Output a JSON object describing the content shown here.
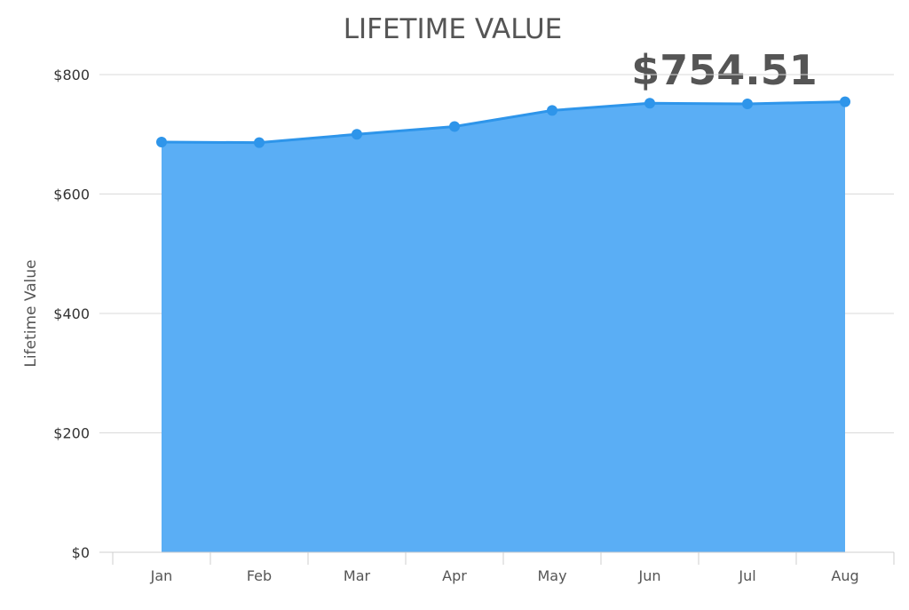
{
  "chart_data": {
    "type": "area",
    "title": "LIFETIME VALUE",
    "headline_value": "$754.51",
    "ylabel": "Lifetime Value",
    "xlabel": "",
    "categories": [
      "Jan",
      "Feb",
      "Mar",
      "Apr",
      "May",
      "Jun",
      "Jul",
      "Aug"
    ],
    "series": [
      {
        "values": [
          687,
          686,
          700,
          713,
          740,
          752,
          751,
          754.51
        ]
      }
    ],
    "ylim": [
      0,
      800
    ],
    "yticks": [
      0,
      200,
      400,
      600,
      800
    ],
    "ytick_labels": [
      "$0",
      "$200",
      "$400",
      "$600",
      "$800"
    ],
    "grid": true,
    "legend": "none",
    "colors": {
      "fill": "#5aaef5",
      "line": "#2e95ea",
      "point": "#2e95ea"
    }
  }
}
